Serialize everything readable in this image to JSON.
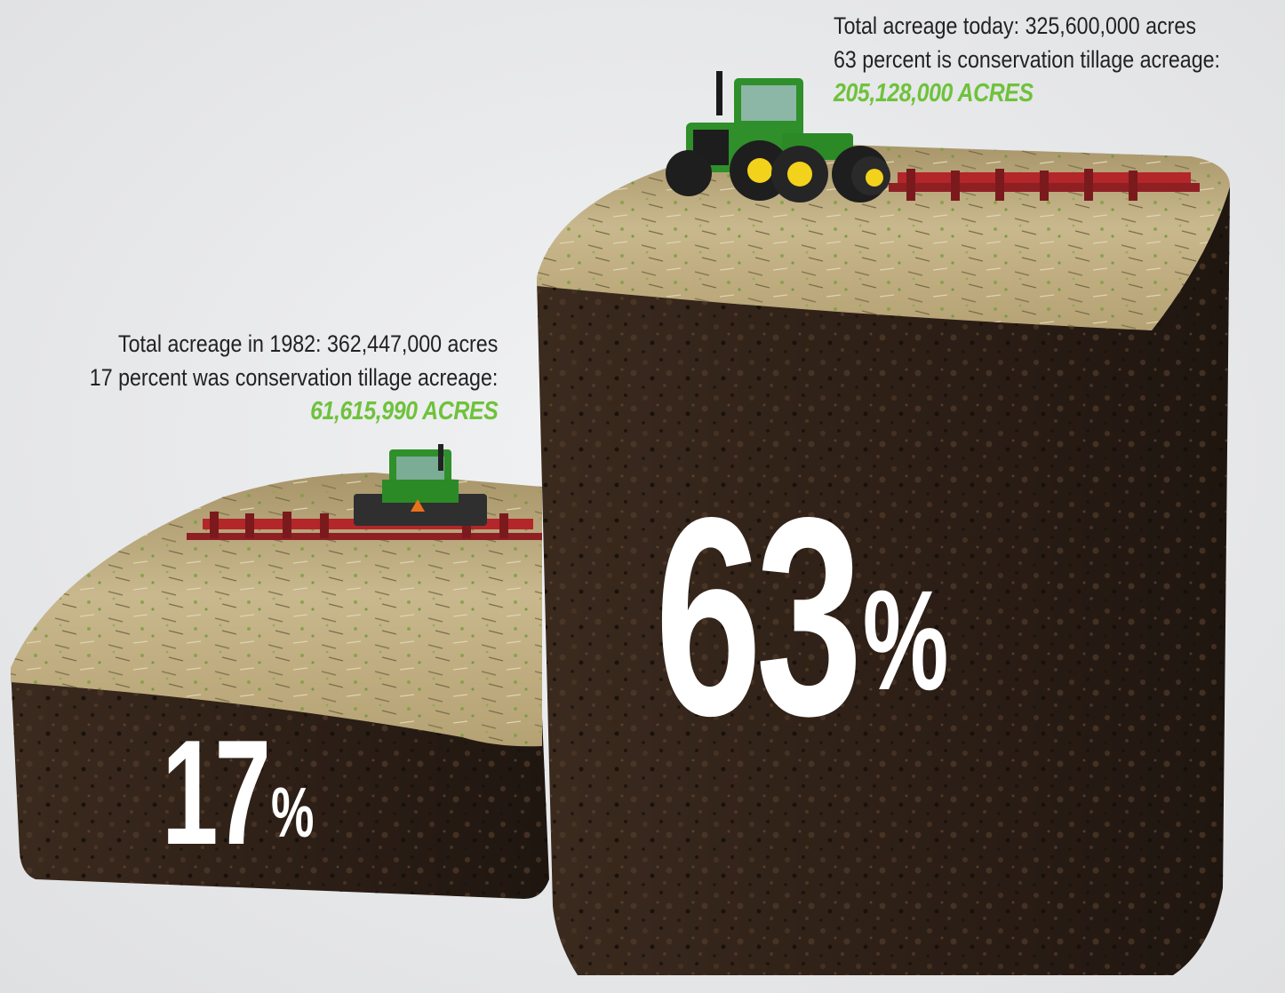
{
  "chart_data": {
    "type": "bar",
    "categories": [
      "1982",
      "today"
    ],
    "values": [
      17,
      63
    ],
    "unit": "%",
    "ylim": [
      0,
      63
    ],
    "bars": [
      {
        "percent_label": "17",
        "percent_sign": "%",
        "value": 17,
        "total_line": "Total acreage in 1982: 362,447,000 acres",
        "share_line": "17 percent was conservation tillage acreage:",
        "acres_label": "61,615,990 ACRES"
      },
      {
        "percent_label": "63",
        "percent_sign": "%",
        "value": 63,
        "total_line": "Total acreage today: 325,600,000 acres",
        "share_line": "63 percent is conservation tillage acreage:",
        "acres_label": "205,128,000 ACRES"
      }
    ]
  },
  "colors": {
    "background": "#e8e9ea",
    "soil_dark": "#2a1d15",
    "soil_mid": "#3d2b1f",
    "field_top": "#b9a67a",
    "accent_green": "#6fc23c",
    "tractor_green": "#2f8f2a",
    "tractor_yellow": "#f2d21b",
    "implement_red": "#b3262a"
  },
  "icons": [
    "tractor-icon",
    "tillage-implement-icon"
  ]
}
